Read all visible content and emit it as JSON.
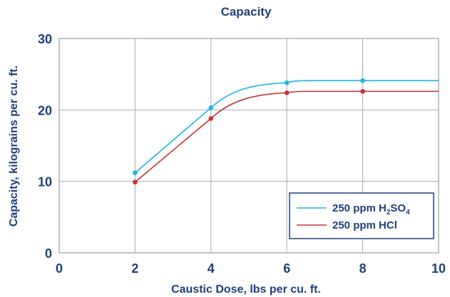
{
  "chart_data": {
    "type": "line",
    "title": "Capacity",
    "xlabel": "Caustic Dose, lbs per cu. ft.",
    "ylabel": "Capacity, kilograins per cu. ft.",
    "xlim": [
      0,
      10
    ],
    "ylim": [
      0,
      30
    ],
    "x_ticks": [
      "0",
      "2",
      "4",
      "6",
      "8",
      "10"
    ],
    "y_ticks": [
      "0",
      "10",
      "20",
      "30"
    ],
    "grid": true,
    "legend_position": "bottom-right",
    "series": [
      {
        "name": "250 ppm H2SO4",
        "legend_parts": [
          [
            "250 ppm H",
            ""
          ],
          [
            "2",
            "sub"
          ],
          [
            "SO",
            ""
          ],
          [
            "4",
            "sub"
          ]
        ],
        "color": "#1bb6e6",
        "x": [
          2,
          4,
          6,
          8
        ],
        "y": [
          11.2,
          20.3,
          23.8,
          24.1
        ],
        "plateau": 24.1
      },
      {
        "name": "250 ppm HCl",
        "legend_parts": [
          [
            "250 ppm HCl",
            ""
          ]
        ],
        "color": "#c8313c",
        "x": [
          2,
          4,
          6,
          8
        ],
        "y": [
          9.9,
          18.8,
          22.4,
          22.6
        ],
        "plateau": 22.6
      }
    ]
  }
}
